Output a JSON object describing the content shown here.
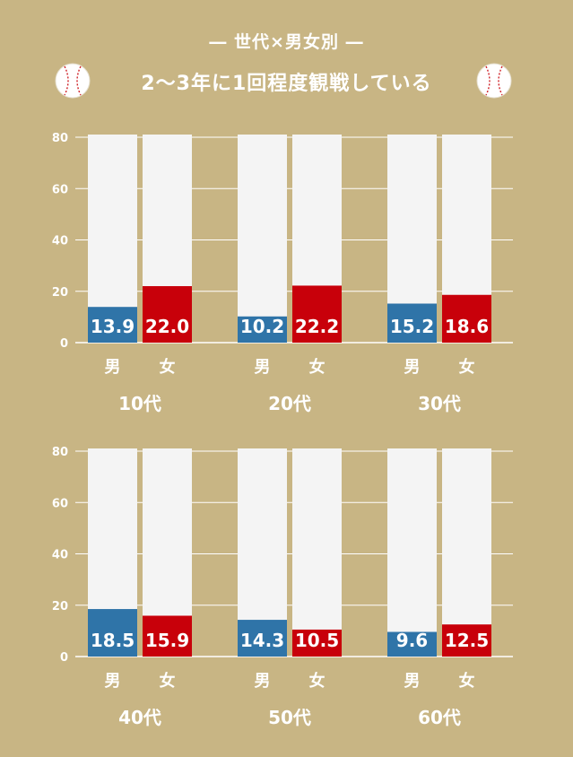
{
  "header": {
    "subtitle": "― 世代×男女別 ―",
    "title": "2〜3年に1回程度観戦している"
  },
  "colors": {
    "background": "#c8b584",
    "male": "#2f74a8",
    "female": "#c8000a",
    "bar_track": "#f4f4f4",
    "grid": "#ffffff"
  },
  "icons": {
    "left": "baseball-icon",
    "right": "baseball-icon"
  },
  "chart_data": {
    "type": "bar",
    "ylim": [
      0,
      80
    ],
    "yticks": [
      0,
      20,
      40,
      60,
      80
    ],
    "series_labels": [
      "男",
      "女"
    ],
    "groups": [
      {
        "label": "10代",
        "values": [
          13.9,
          22.0
        ]
      },
      {
        "label": "20代",
        "values": [
          10.2,
          22.2
        ]
      },
      {
        "label": "30代",
        "values": [
          15.2,
          18.6
        ]
      },
      {
        "label": "40代",
        "values": [
          18.5,
          15.9
        ]
      },
      {
        "label": "50代",
        "values": [
          14.3,
          10.5
        ]
      },
      {
        "label": "60代",
        "values": [
          9.6,
          12.5
        ]
      }
    ]
  }
}
